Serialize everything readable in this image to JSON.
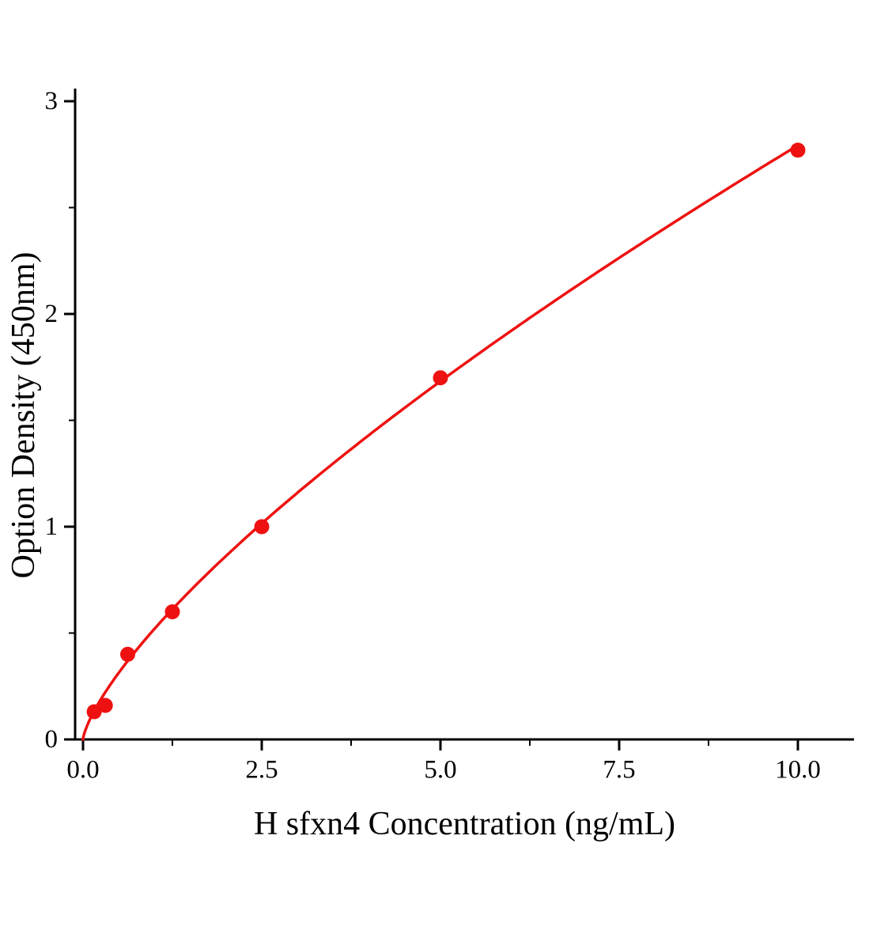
{
  "chart_data": {
    "type": "scatter",
    "title": "",
    "xlabel": "H sfxn4 Concentration (ng/mL)",
    "ylabel": "Option Density (450nm)",
    "x": [
      0.156,
      0.312,
      0.625,
      1.25,
      2.5,
      5,
      10
    ],
    "y": [
      0.13,
      0.16,
      0.4,
      0.6,
      1.0,
      1.7,
      2.77
    ],
    "xlim": [
      0,
      10.8
    ],
    "ylim": [
      0,
      3
    ],
    "x_major_ticks": [
      0,
      2.5,
      5,
      7.5,
      10
    ],
    "x_tick_labels": [
      "0.0",
      "2.5",
      "5.0",
      "7.5",
      "10.0"
    ],
    "x_minor_ticks": [
      1.25,
      3.75,
      6.25,
      8.75
    ],
    "y_major_ticks": [
      0,
      1,
      2,
      3
    ],
    "y_tick_labels": [
      "0",
      "1",
      "2",
      "3"
    ],
    "y_minor_ticks": [
      0.5,
      1.5,
      2.5
    ],
    "line_color": "#ee1111",
    "marker_color": "#ee1111",
    "axis_color": "#000000",
    "curve_fit": {
      "type": "power",
      "a": 0.52,
      "b": 0.73
    },
    "grid": false,
    "legend": null
  }
}
